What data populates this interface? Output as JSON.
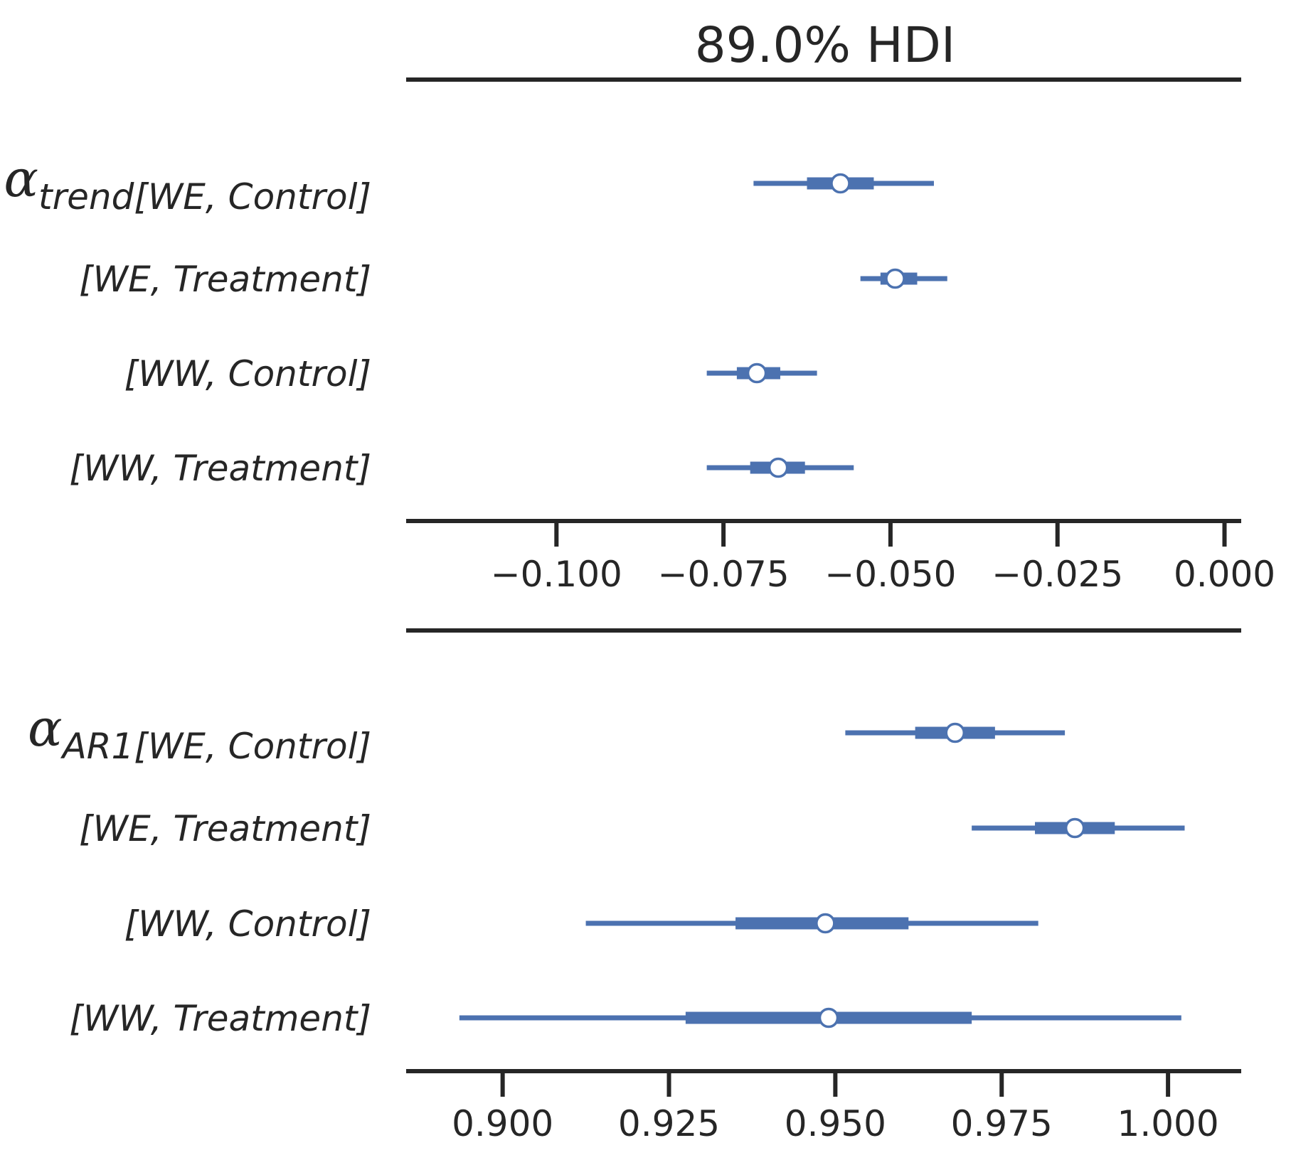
{
  "title": "89.0% HDI",
  "colors": {
    "series": "#4c72b0",
    "axis": "#262626",
    "marker_fill": "#ffffff"
  },
  "chart_data": [
    {
      "type": "forest",
      "xlim": [
        -0.1225,
        0.0025
      ],
      "xticks": [
        -0.1,
        -0.075,
        -0.05,
        -0.025,
        0.0
      ],
      "xtick_labels": [
        "−0.100",
        "−0.075",
        "−0.050",
        "−0.025",
        "0.000"
      ],
      "variable": {
        "symbol": "α",
        "subscript": "trend"
      },
      "rows": [
        {
          "label": "[WE, Control]",
          "hdi": [
            -0.0705,
            -0.0435
          ],
          "iqr": [
            -0.0625,
            -0.0525
          ],
          "median": -0.0575
        },
        {
          "label": "[WE, Treatment]",
          "hdi": [
            -0.0545,
            -0.0415
          ],
          "iqr": [
            -0.0515,
            -0.046
          ],
          "median": -0.0493
        },
        {
          "label": "[WW, Control]",
          "hdi": [
            -0.0775,
            -0.061
          ],
          "iqr": [
            -0.073,
            -0.0665
          ],
          "median": -0.07
        },
        {
          "label": "[WW, Treatment]",
          "hdi": [
            -0.0775,
            -0.0555
          ],
          "iqr": [
            -0.071,
            -0.0628
          ],
          "median": -0.0668
        }
      ]
    },
    {
      "type": "forest",
      "xlim": [
        0.8855,
        1.011
      ],
      "xticks": [
        0.9,
        0.925,
        0.95,
        0.975,
        1.0
      ],
      "xtick_labels": [
        "0.900",
        "0.925",
        "0.950",
        "0.975",
        "1.000"
      ],
      "variable": {
        "symbol": "α",
        "subscript": "AR1"
      },
      "rows": [
        {
          "label": "[WE, Control]",
          "hdi": [
            0.9515,
            0.9845
          ],
          "iqr": [
            0.962,
            0.974
          ],
          "median": 0.968
        },
        {
          "label": "[WE, Treatment]",
          "hdi": [
            0.9705,
            1.0025
          ],
          "iqr": [
            0.98,
            0.992
          ],
          "median": 0.986
        },
        {
          "label": "[WW, Control]",
          "hdi": [
            0.9125,
            0.9805
          ],
          "iqr": [
            0.935,
            0.961
          ],
          "median": 0.9485
        },
        {
          "label": "[WW, Treatment]",
          "hdi": [
            0.8935,
            1.002
          ],
          "iqr": [
            0.9275,
            0.9705
          ],
          "median": 0.949
        }
      ]
    }
  ]
}
